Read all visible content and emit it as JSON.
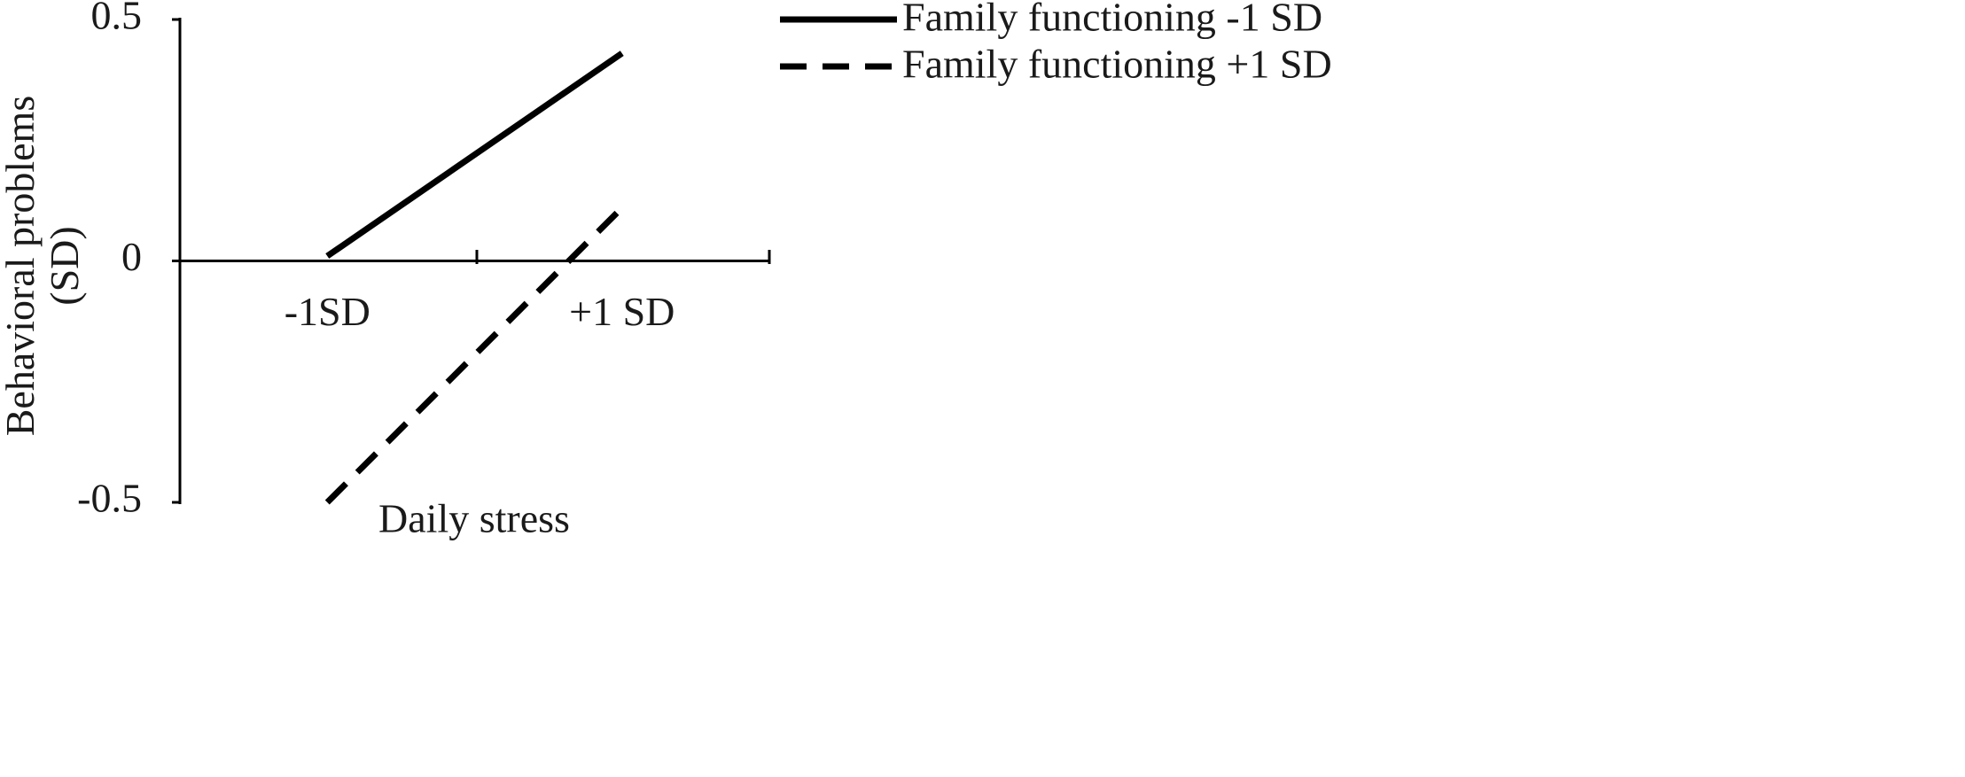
{
  "chart_data": {
    "type": "line",
    "x_label": "Daily stress",
    "y_label": "Behavioral problems (SD)",
    "categories": [
      "-1SD",
      "+1 SD"
    ],
    "series": [
      {
        "name": "Family functioning -1 SD",
        "color": "#000000",
        "style": "solid",
        "values": [
          0.01,
          0.43
        ]
      },
      {
        "name": "Family functioning +1 SD",
        "color": "#000000",
        "style": "dashed",
        "values": [
          -0.5,
          0.11
        ]
      }
    ],
    "ylim": [
      -0.5,
      0.5
    ],
    "yticks": [
      -0.5,
      0,
      0.5
    ],
    "grid": false,
    "legend": "top-right"
  }
}
